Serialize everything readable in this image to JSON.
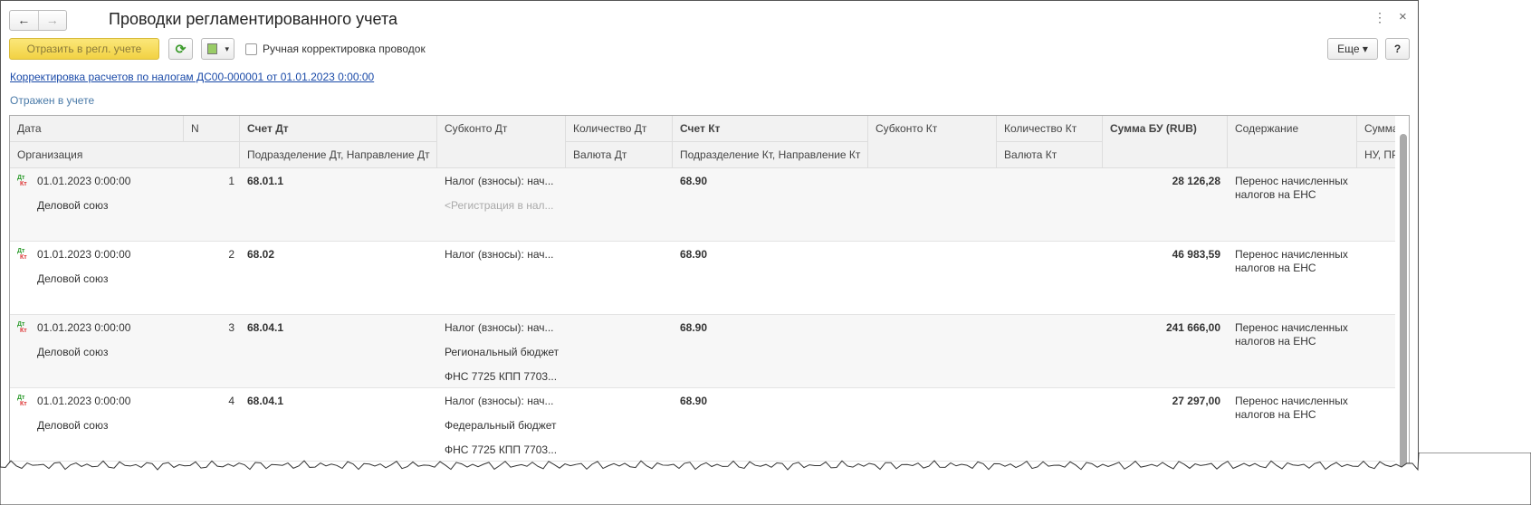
{
  "window": {
    "title": "Проводки регламентированного учета",
    "back": "←",
    "forward": "→",
    "more_icon": "⋮",
    "close_icon": "×"
  },
  "toolbar": {
    "post_label": "Отразить в регл. учете",
    "refresh_icon": "⟳",
    "copy_icon": "▾",
    "manual_checkbox_label": "Ручная корректировка проводок",
    "manual_checked": false,
    "more_label": "Еще ▾",
    "help_label": "?"
  },
  "document_link": "Корректировка расчетов по налогам ДС00-000001 от 01.01.2023 0:00:00",
  "status": "Отражен в учете",
  "columns": {
    "date": "Дата",
    "n": "N",
    "acc_dt": "Счет Дт",
    "sub_dt": "Субконто Дт",
    "qty_dt": "Количество Дт",
    "acc_kt": "Счет Кт",
    "sub_kt": "Субконто Кт",
    "qty_kt": "Количество Кт",
    "sum_bu": "Сумма БУ (RUB)",
    "content": "Содержание",
    "sum_nu": "Сумма",
    "org": "Организация",
    "dept_dt": "Подразделение Дт, Направление Дт",
    "cur_dt": "Валюта Дт",
    "dept_kt": "Подразделение Кт, Направление Кт",
    "cur_kt": "Валюта Кт",
    "nu_pr": "НУ, ПР"
  },
  "icon": {
    "dt": "Дт",
    "kt": "Кт"
  },
  "rows": [
    {
      "date": "01.01.2023 0:00:00",
      "n": "1",
      "org": "Деловой союз",
      "acc_dt": "68.01.1",
      "sub_dt": [
        "Налог (взносы): нач...",
        "<Регистрация в нал..."
      ],
      "acc_kt": "68.90",
      "sum_bu": "28 126,28",
      "content": [
        "Перенос начисленных",
        "налогов на ЕНС"
      ]
    },
    {
      "date": "01.01.2023 0:00:00",
      "n": "2",
      "org": "Деловой союз",
      "acc_dt": "68.02",
      "sub_dt": [
        "Налог (взносы): нач..."
      ],
      "acc_kt": "68.90",
      "sum_bu": "46 983,59",
      "content": [
        "Перенос начисленных",
        "налогов на ЕНС"
      ]
    },
    {
      "date": "01.01.2023 0:00:00",
      "n": "3",
      "org": "Деловой союз",
      "acc_dt": "68.04.1",
      "sub_dt": [
        "Налог (взносы): нач...",
        "Региональный бюджет",
        "ФНС 7725 КПП 7703..."
      ],
      "acc_kt": "68.90",
      "sum_bu": "241 666,00",
      "content": [
        "Перенос начисленных",
        "налогов на ЕНС"
      ]
    },
    {
      "date": "01.01.2023 0:00:00",
      "n": "4",
      "org": "Деловой союз",
      "acc_dt": "68.04.1",
      "sub_dt": [
        "Налог (взносы): нач...",
        "Федеральный бюджет",
        "ФНС 7725 КПП 7703..."
      ],
      "acc_kt": "68.90",
      "sum_bu": "27 297,00",
      "content": [
        "Перенос начисленных",
        "налогов на ЕНС"
      ]
    }
  ]
}
